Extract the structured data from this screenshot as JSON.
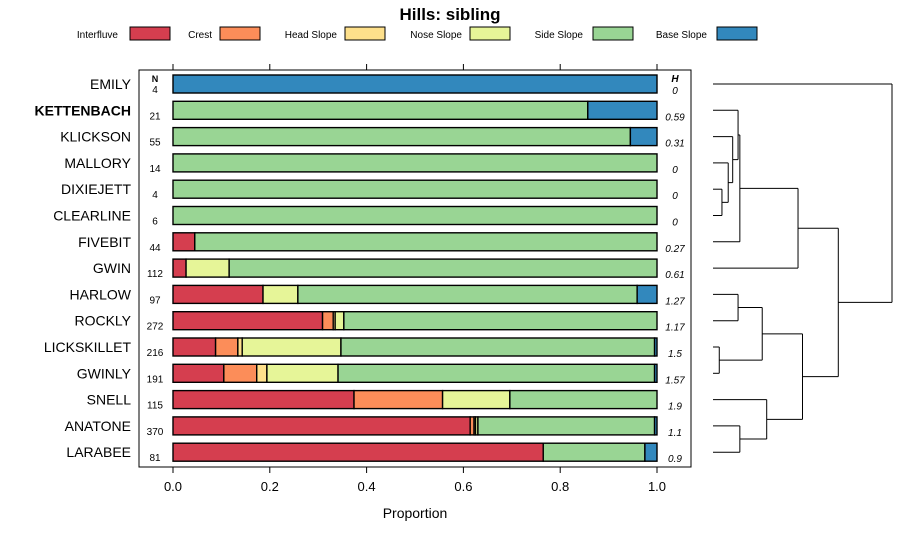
{
  "chart_data": {
    "type": "bar",
    "subtype": "stacked-horizontal-proportion",
    "title": "Hills: sibling",
    "xlabel": "Proportion",
    "ylabel": "",
    "xlim": [
      0,
      1
    ],
    "xticks": [
      "0.0",
      "0.2",
      "0.4",
      "0.6",
      "0.8",
      "1.0"
    ],
    "n_header": "N",
    "h_header": "H",
    "highlight": "KETTENBACH",
    "legend_position": "top",
    "series": [
      {
        "name": "Interfluve",
        "color": "#d53e4f"
      },
      {
        "name": "Crest",
        "color": "#fc8d59"
      },
      {
        "name": "Head Slope",
        "color": "#fee08b"
      },
      {
        "name": "Nose Slope",
        "color": "#e6f598"
      },
      {
        "name": "Side Slope",
        "color": "#99d594"
      },
      {
        "name": "Base Slope",
        "color": "#3288bd"
      }
    ],
    "rows": [
      {
        "name": "EMILY",
        "n": "4",
        "h": "0",
        "values": [
          0,
          0,
          0,
          0,
          0,
          1
        ]
      },
      {
        "name": "KETTENBACH",
        "n": "21",
        "h": "0.59",
        "values": [
          0,
          0,
          0,
          0,
          0.857,
          0.143
        ]
      },
      {
        "name": "KLICKSON",
        "n": "55",
        "h": "0.31",
        "values": [
          0,
          0,
          0,
          0,
          0.945,
          0.055
        ]
      },
      {
        "name": "MALLORY",
        "n": "14",
        "h": "0",
        "values": [
          0,
          0,
          0,
          0,
          1,
          0
        ]
      },
      {
        "name": "DIXIEJETT",
        "n": "4",
        "h": "0",
        "values": [
          0,
          0,
          0,
          0,
          1,
          0
        ]
      },
      {
        "name": "CLEARLINE",
        "n": "6",
        "h": "0",
        "values": [
          0,
          0,
          0,
          0,
          1,
          0
        ]
      },
      {
        "name": "FIVEBIT",
        "n": "44",
        "h": "0.27",
        "values": [
          0.045,
          0,
          0,
          0,
          0.955,
          0
        ]
      },
      {
        "name": "GWIN",
        "n": "112",
        "h": "0.61",
        "values": [
          0.027,
          0,
          0,
          0.089,
          0.884,
          0
        ]
      },
      {
        "name": "HARLOW",
        "n": "97",
        "h": "1.27",
        "values": [
          0.186,
          0,
          0,
          0.072,
          0.701,
          0.041
        ]
      },
      {
        "name": "ROCKLY",
        "n": "272",
        "h": "1.17",
        "values": [
          0.309,
          0.022,
          0.004,
          0.018,
          0.647,
          0
        ]
      },
      {
        "name": "LICKSKILLET",
        "n": "216",
        "h": "1.5",
        "values": [
          0.088,
          0.046,
          0.009,
          0.204,
          0.648,
          0.005
        ]
      },
      {
        "name": "GWINLY",
        "n": "191",
        "h": "1.57",
        "values": [
          0.105,
          0.068,
          0.021,
          0.147,
          0.654,
          0.005
        ]
      },
      {
        "name": "SNELL",
        "n": "115",
        "h": "1.9",
        "values": [
          0.374,
          0.183,
          0,
          0.139,
          0.304,
          0
        ]
      },
      {
        "name": "ANATONE",
        "n": "370",
        "h": "1.1",
        "values": [
          0.614,
          0.008,
          0.003,
          0.005,
          0.365,
          0.005
        ]
      },
      {
        "name": "LARABEE",
        "n": "81",
        "h": "0.9",
        "values": [
          0.765,
          0,
          0,
          0,
          0.21,
          0.025
        ]
      }
    ],
    "dendrogram_merges": [
      [
        4,
        5,
        0.1
      ],
      [
        3,
        15,
        0.17
      ],
      [
        2,
        16,
        0.22
      ],
      [
        1,
        17,
        0.28
      ],
      [
        6,
        18,
        0.3
      ],
      [
        8,
        9,
        0.28
      ],
      [
        10,
        11,
        0.07
      ],
      [
        20,
        21,
        0.55
      ],
      [
        13,
        14,
        0.3
      ],
      [
        12,
        23,
        0.6
      ],
      [
        22,
        24,
        1.0
      ],
      [
        7,
        19,
        0.95
      ],
      [
        26,
        25,
        1.4
      ],
      [
        0,
        27,
        2.0
      ]
    ],
    "dendrogram_max_height": 2.0
  }
}
